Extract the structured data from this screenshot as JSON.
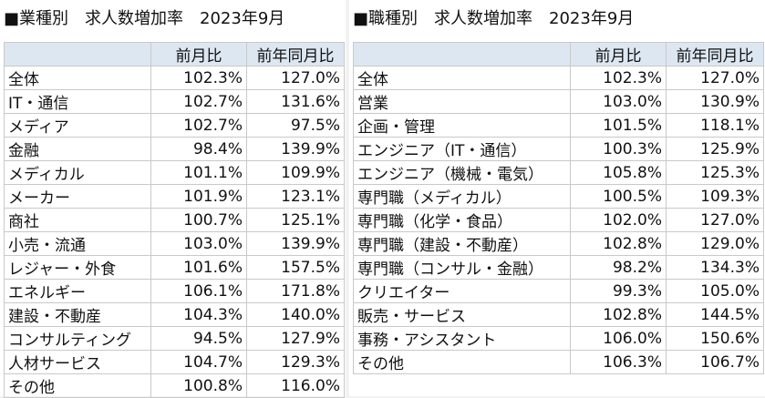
{
  "left_table": {
    "title": "■業種別　求人数増加率　2023年9月",
    "headers": [
      "",
      "前月比",
      "前年同月比"
    ],
    "rows": [
      [
        "全体",
        "102.3%",
        "127.0%"
      ],
      [
        "IT・通信",
        "102.7%",
        "131.6%"
      ],
      [
        "メディア",
        "102.7%",
        "97.5%"
      ],
      [
        "金融",
        "98.4%",
        "139.9%"
      ],
      [
        "メディカル",
        "101.1%",
        "109.9%"
      ],
      [
        "メーカー",
        "101.9%",
        "123.1%"
      ],
      [
        "商社",
        "100.7%",
        "125.1%"
      ],
      [
        "小売・流通",
        "103.0%",
        "139.9%"
      ],
      [
        "レジャー・外食",
        "101.6%",
        "157.5%"
      ],
      [
        "エネルギー",
        "106.1%",
        "171.8%"
      ],
      [
        "建設・不動産",
        "104.3%",
        "140.0%"
      ],
      [
        "コンサルティング",
        "94.5%",
        "127.9%"
      ],
      [
        "人材サービス",
        "104.7%",
        "129.3%"
      ],
      [
        "その他",
        "100.8%",
        "116.0%"
      ]
    ]
  },
  "right_table": {
    "title": "■職種別　求人数増加率　2023年9月",
    "headers": [
      "",
      "前月比",
      "前年同月比"
    ],
    "rows": [
      [
        "全体",
        "102.3%",
        "127.0%"
      ],
      [
        "営業",
        "103.0%",
        "130.9%"
      ],
      [
        "企画・管理",
        "101.5%",
        "118.1%"
      ],
      [
        "エンジニア（IT・通信）",
        "100.3%",
        "125.9%"
      ],
      [
        "エンジニア（機械・電気）",
        "105.8%",
        "125.3%"
      ],
      [
        "専門職（メディカル）",
        "100.5%",
        "109.3%"
      ],
      [
        "専門職（化学・食品）",
        "102.0%",
        "127.0%"
      ],
      [
        "専門職（建設・不動産）",
        "102.8%",
        "129.0%"
      ],
      [
        "専門職（コンサル・金融）",
        "98.2%",
        "134.3%"
      ],
      [
        "クリエイター",
        "99.3%",
        "105.0%"
      ],
      [
        "販売・サービス",
        "102.8%",
        "144.5%"
      ],
      [
        "事務・アシスタント",
        "106.0%",
        "150.6%"
      ],
      [
        "その他",
        "106.3%",
        "106.7%"
      ]
    ]
  }
}
